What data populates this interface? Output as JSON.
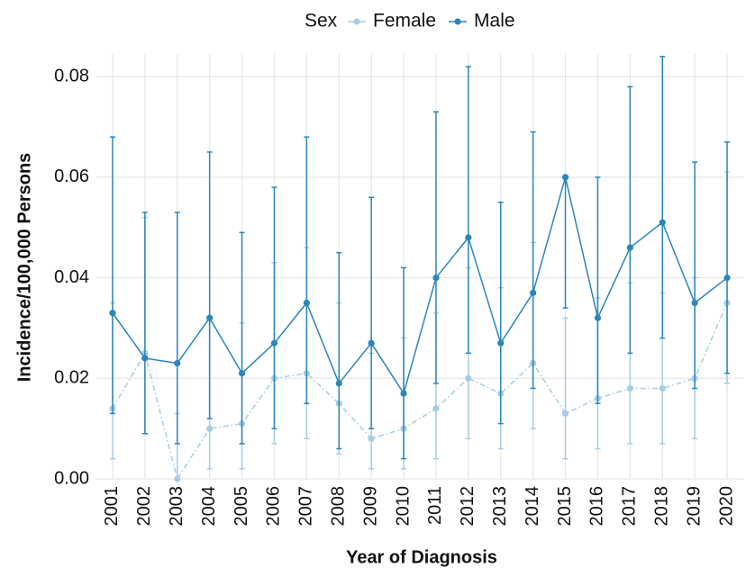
{
  "chart_data": {
    "type": "line",
    "x_label": "Year of Diagnosis",
    "y_label": "Incidence/100,000 Persons",
    "legend_title": "Sex",
    "legend_position": "top",
    "grid": true,
    "categories": [
      "2001",
      "2002",
      "2003",
      "2004",
      "2005",
      "2006",
      "2007",
      "2008",
      "2009",
      "2010",
      "2011",
      "2012",
      "2013",
      "2014",
      "2015",
      "2016",
      "2017",
      "2018",
      "2019",
      "2020"
    ],
    "ylim": [
      0,
      0.0845
    ],
    "yticks": [
      {
        "value": 0,
        "label": "0.00"
      },
      0.02,
      0.04,
      0.06,
      0.08
    ],
    "series": [
      {
        "name": "Female",
        "color": "#a6cde3",
        "dash": true,
        "values": [
          0.014,
          0.025,
          0.0,
          0.01,
          0.011,
          0.02,
          0.021,
          0.015,
          0.008,
          0.01,
          0.014,
          0.02,
          0.017,
          0.023,
          0.013,
          0.016,
          0.018,
          0.018,
          0.02,
          0.035
        ],
        "lower": [
          0.004,
          0.009,
          0.0,
          0.002,
          0.002,
          0.007,
          0.008,
          0.005,
          0.002,
          0.002,
          0.004,
          0.008,
          0.006,
          0.01,
          0.004,
          0.006,
          0.007,
          0.007,
          0.008,
          0.019
        ],
        "upper": [
          0.035,
          0.052,
          0.013,
          0.032,
          0.031,
          0.043,
          0.046,
          0.035,
          0.025,
          0.028,
          0.033,
          0.042,
          0.038,
          0.047,
          0.032,
          0.036,
          0.039,
          0.037,
          0.04,
          0.061
        ]
      },
      {
        "name": "Male",
        "color": "#2a86bb",
        "dash": false,
        "values": [
          0.033,
          0.024,
          0.023,
          0.032,
          0.021,
          0.027,
          0.035,
          0.019,
          0.027,
          0.017,
          0.04,
          0.048,
          0.027,
          0.037,
          0.06,
          0.032,
          0.046,
          0.051,
          0.035,
          0.04
        ],
        "lower": [
          0.013,
          0.009,
          0.007,
          0.012,
          0.007,
          0.01,
          0.015,
          0.006,
          0.01,
          0.004,
          0.019,
          0.025,
          0.011,
          0.018,
          0.034,
          0.015,
          0.025,
          0.028,
          0.018,
          0.021
        ],
        "upper": [
          0.068,
          0.053,
          0.053,
          0.065,
          0.049,
          0.058,
          0.068,
          0.045,
          0.056,
          0.042,
          0.073,
          0.082,
          0.055,
          0.069,
          null,
          0.06,
          0.078,
          0.084,
          0.063,
          0.067
        ]
      }
    ]
  }
}
